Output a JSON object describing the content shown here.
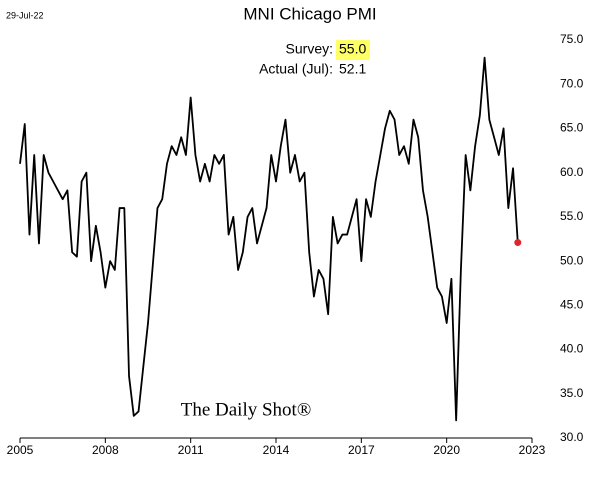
{
  "chart_data": {
    "type": "line",
    "title": "MNI Chicago PMI",
    "date_label": "29-Jul-22",
    "annotations": {
      "survey_label": "Survey:",
      "survey_value": "55.0",
      "actual_label": "Actual (Jul):",
      "actual_value": "52.1"
    },
    "source": "The Daily Shot®",
    "color": "#000000",
    "end_marker_color": "#e0262b",
    "xlim": [
      2005,
      2023
    ],
    "xticks": [
      2005,
      2008,
      2011,
      2014,
      2017,
      2020,
      2023
    ],
    "ylim": [
      30,
      75
    ],
    "yticks": [
      {
        "value": 30,
        "label": "30.0"
      },
      {
        "value": 35,
        "label": "35.0"
      },
      {
        "value": 40,
        "label": "40.0"
      },
      {
        "value": 45,
        "label": "45.0"
      },
      {
        "value": 50,
        "label": "50.0"
      },
      {
        "value": 55,
        "label": "55.0"
      },
      {
        "value": 60,
        "label": "60.0"
      },
      {
        "value": 65,
        "label": "65.0"
      },
      {
        "value": 70,
        "label": "70.0"
      },
      {
        "value": 75,
        "label": "75.0"
      }
    ],
    "grid": false,
    "series": [
      {
        "name": "MNI Chicago PMI",
        "color": "#000000",
        "x": [
          2005,
          2005.167,
          2005.333,
          2005.5,
          2005.667,
          2005.833,
          2006,
          2006.167,
          2006.333,
          2006.5,
          2006.667,
          2006.833,
          2007,
          2007.167,
          2007.333,
          2007.5,
          2007.667,
          2007.833,
          2008,
          2008.167,
          2008.333,
          2008.5,
          2008.667,
          2008.833,
          2009,
          2009.167,
          2009.333,
          2009.5,
          2009.667,
          2009.833,
          2010,
          2010.167,
          2010.333,
          2010.5,
          2010.667,
          2010.833,
          2011,
          2011.167,
          2011.333,
          2011.5,
          2011.667,
          2011.833,
          2012,
          2012.167,
          2012.333,
          2012.5,
          2012.667,
          2012.833,
          2013,
          2013.167,
          2013.333,
          2013.5,
          2013.667,
          2013.833,
          2014,
          2014.167,
          2014.333,
          2014.5,
          2014.667,
          2014.833,
          2015,
          2015.167,
          2015.333,
          2015.5,
          2015.667,
          2015.833,
          2016,
          2016.167,
          2016.333,
          2016.5,
          2016.667,
          2016.833,
          2017,
          2017.167,
          2017.333,
          2017.5,
          2017.667,
          2017.833,
          2018,
          2018.167,
          2018.333,
          2018.5,
          2018.667,
          2018.833,
          2019,
          2019.167,
          2019.333,
          2019.5,
          2019.667,
          2019.833,
          2020,
          2020.167,
          2020.333,
          2020.5,
          2020.667,
          2020.833,
          2021,
          2021.167,
          2021.333,
          2021.5,
          2021.667,
          2021.833,
          2022,
          2022.167,
          2022.333,
          2022.5
        ],
        "values": [
          61,
          65.5,
          53,
          62,
          52,
          62,
          60,
          59,
          58,
          57,
          58,
          51,
          50.5,
          59,
          60,
          50,
          54,
          51,
          47,
          50,
          49,
          56,
          56,
          37,
          32.5,
          33,
          38,
          43,
          49.5,
          56,
          57,
          61,
          63,
          62,
          64,
          62,
          68.5,
          62,
          59,
          61,
          59,
          62,
          61,
          62,
          53,
          55,
          49,
          51,
          55,
          56,
          52,
          54,
          56,
          62,
          59,
          63,
          66,
          60,
          62,
          59,
          60,
          51,
          46,
          49,
          48,
          44,
          55,
          52,
          53,
          53,
          55,
          57,
          50,
          57,
          55,
          59,
          62,
          65,
          67,
          66,
          62,
          63,
          61,
          66,
          64,
          58,
          55,
          51,
          47,
          46,
          43,
          48,
          32,
          49,
          62,
          58,
          63,
          66.5,
          73,
          66,
          64,
          62,
          65,
          56,
          60.5,
          52.1
        ]
      }
    ]
  }
}
